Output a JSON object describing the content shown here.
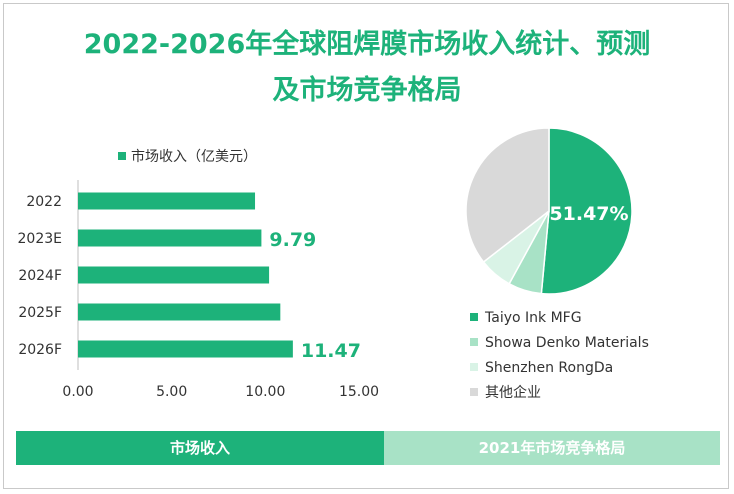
{
  "title_line1": "2022-2026年全球阻焊膜市场收入统计、预测",
  "title_line2": "及市场竞争格局",
  "colors": {
    "accent": "#1db27a",
    "light": "#a8e2c6",
    "lighter": "#d9f3e6",
    "gray": "#d9d9d9"
  },
  "chart_data": [
    {
      "type": "bar",
      "orientation": "horizontal",
      "legend": "市场收入（亿美元）",
      "categories": [
        "2022",
        "2023E",
        "2024F",
        "2025F",
        "2026F"
      ],
      "values": [
        9.45,
        9.79,
        10.2,
        10.8,
        11.47
      ],
      "value_labels": [
        "",
        "9.79",
        "",
        "",
        "11.47"
      ],
      "xlim": [
        0,
        15
      ],
      "xticks": [
        "0.00",
        "5.00",
        "10.00",
        "15.00"
      ],
      "xlabel": "",
      "ylabel": "",
      "caption": "市场收入"
    },
    {
      "type": "pie",
      "labels": [
        "Taiyo Ink MFG",
        "Showa Denko Materials",
        "Shenzhen RongDa",
        "其他企业"
      ],
      "values": [
        51.47,
        6.5,
        6.5,
        35.53
      ],
      "value_labels": [
        "51.47%",
        "",
        "",
        ""
      ],
      "colors": [
        "#1db27a",
        "#a8e2c6",
        "#d9f3e6",
        "#d9d9d9"
      ],
      "caption": "2021年市场竞争格局"
    }
  ]
}
